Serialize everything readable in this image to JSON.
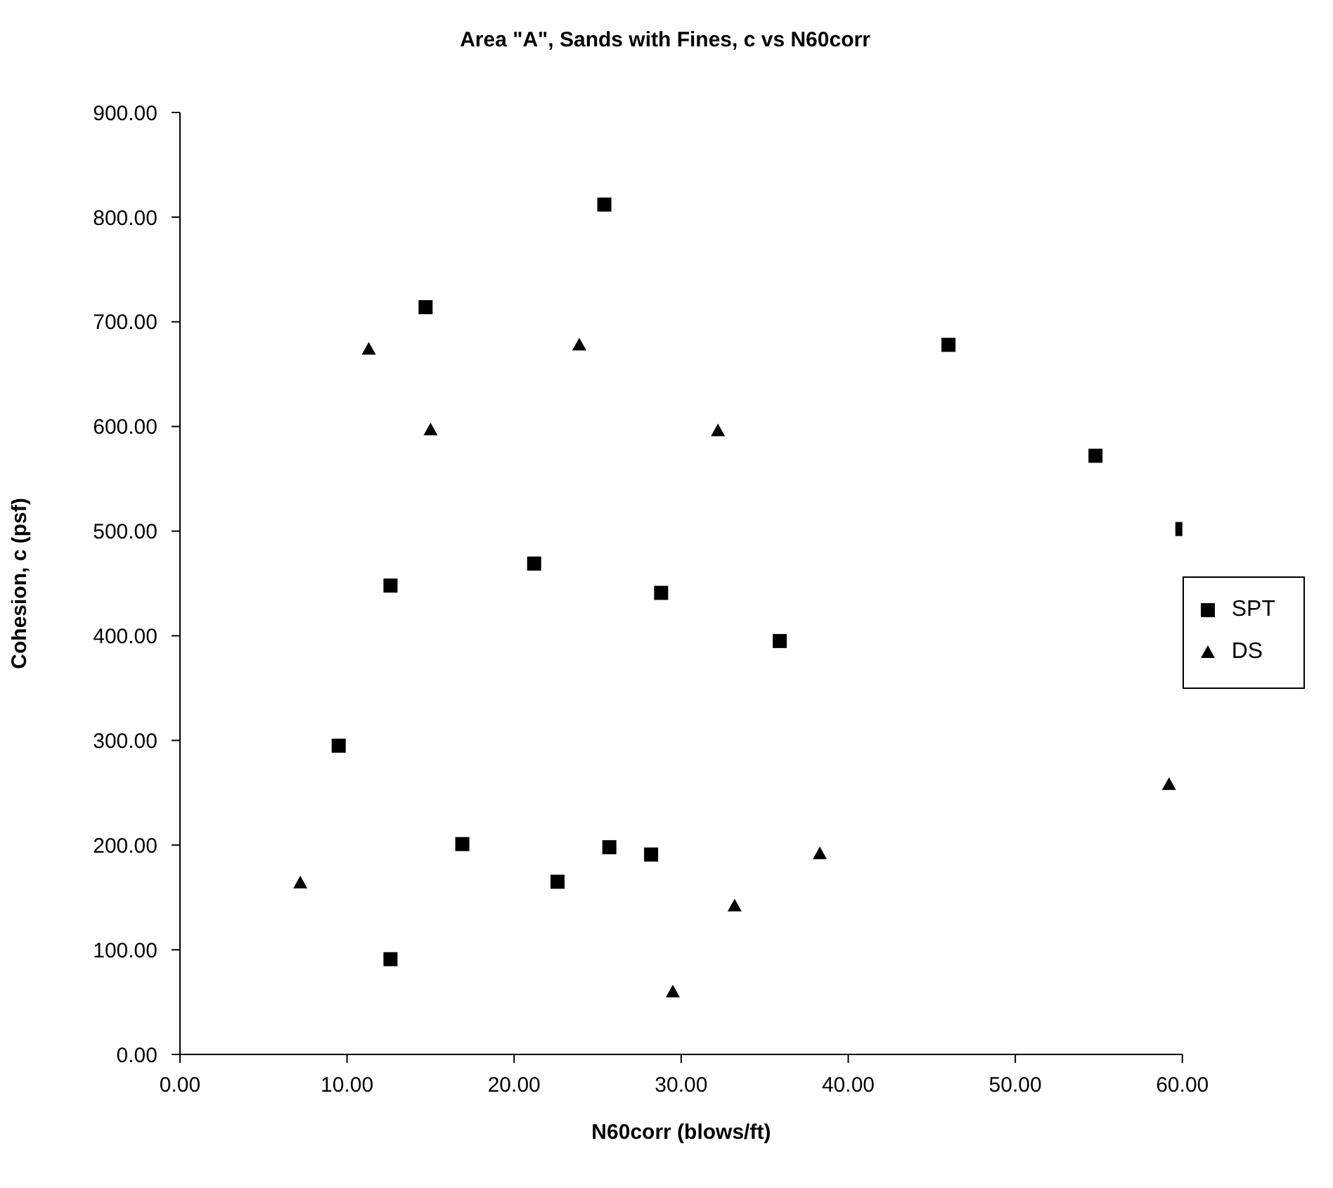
{
  "chart_data": {
    "type": "scatter",
    "title": "Area \"A\", Sands with Fines, c vs N60corr",
    "xlabel": "N60corr (blows/ft)",
    "ylabel": "Cohesion, c (psf)",
    "xlim": [
      0,
      60
    ],
    "xticks": [
      {
        "value": 0,
        "label": "0.00"
      },
      {
        "value": 10,
        "label": "10.00"
      },
      {
        "value": 20,
        "label": "20.00"
      },
      {
        "value": 30,
        "label": "30.00"
      },
      {
        "value": 40,
        "label": "40.00"
      },
      {
        "value": 50,
        "label": "50.00"
      },
      {
        "value": 60,
        "label": "60.00"
      }
    ],
    "ylim": [
      0,
      900
    ],
    "yticks": [
      {
        "value": 0,
        "label": "0.00"
      },
      {
        "value": 100,
        "label": "100.00"
      },
      {
        "value": 200,
        "label": "200.00"
      },
      {
        "value": 300,
        "label": "300.00"
      },
      {
        "value": 400,
        "label": "400.00"
      },
      {
        "value": 500,
        "label": "500.00"
      },
      {
        "value": 600,
        "label": "600.00"
      },
      {
        "value": 700,
        "label": "700.00"
      },
      {
        "value": 800,
        "label": "800.00"
      },
      {
        "value": 900,
        "label": "900.00"
      }
    ],
    "grid": false,
    "legend": "right",
    "series": [
      {
        "name": "SPT",
        "color": "#000000",
        "marker": "square",
        "x": [
          25.4,
          14.7,
          12.6,
          21.2,
          28.8,
          9.5,
          16.9,
          22.6,
          25.7,
          28.2,
          12.6,
          46.0,
          54.8,
          60.0,
          35.9
        ],
        "values": [
          812,
          714,
          448,
          469,
          441,
          295,
          201,
          165,
          198,
          191,
          91,
          678,
          572,
          502,
          395
        ]
      },
      {
        "name": "DS",
        "color": "#000000",
        "marker": "triangle",
        "x": [
          11.3,
          23.9,
          15.0,
          7.2,
          29.5,
          32.2,
          33.2,
          38.3,
          59.2
        ],
        "values": [
          674,
          678,
          597,
          164,
          60,
          596,
          142,
          192,
          258
        ]
      }
    ]
  }
}
